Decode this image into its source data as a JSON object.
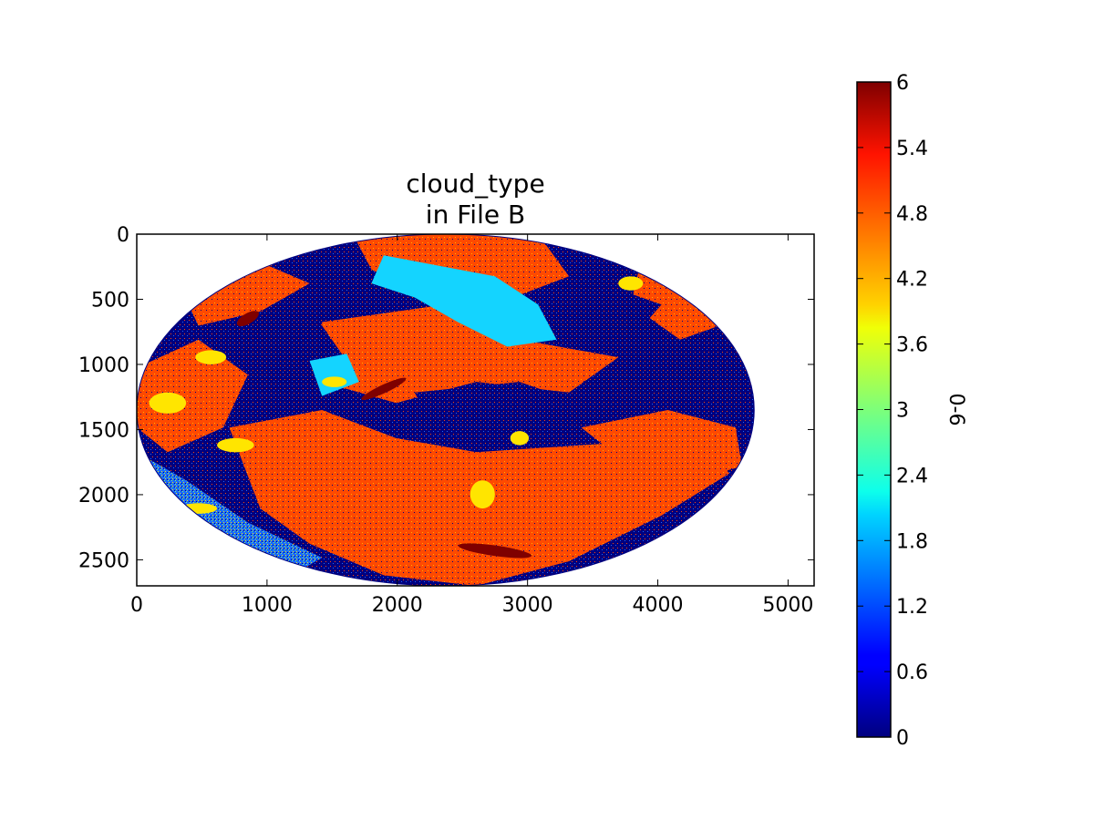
{
  "chart_data": {
    "type": "heatmap",
    "title": [
      "cloud_type",
      "in File B"
    ],
    "xlim": [
      0,
      5200
    ],
    "ylim": [
      2700,
      0
    ],
    "x_ticks": [
      "0",
      "1000",
      "2000",
      "3000",
      "4000",
      "5000"
    ],
    "y_ticks": [
      "0",
      "500",
      "1000",
      "1500",
      "2000",
      "2500"
    ],
    "y_inverted": true,
    "colorbar": {
      "label": "0-6",
      "range": [
        0,
        6
      ],
      "ticks": [
        "0",
        "0.6",
        "1.2",
        "1.8",
        "2.4",
        "3",
        "3.6",
        "4.2",
        "4.8",
        "5.4",
        "6"
      ],
      "colormap": "jet"
    },
    "image_extent": {
      "x": [
        0,
        4740
      ],
      "y": [
        0,
        2700
      ],
      "shape": "ellipse"
    },
    "dominant_values": [
      0,
      5,
      2,
      4,
      6
    ],
    "colors": {
      "v0": "#00007f",
      "v1": "#0050ff",
      "v2": "#14d4ff",
      "v3": "#7dff7a",
      "v4": "#ffe500",
      "v5": "#ff4a00",
      "v6": "#7f0000"
    }
  }
}
